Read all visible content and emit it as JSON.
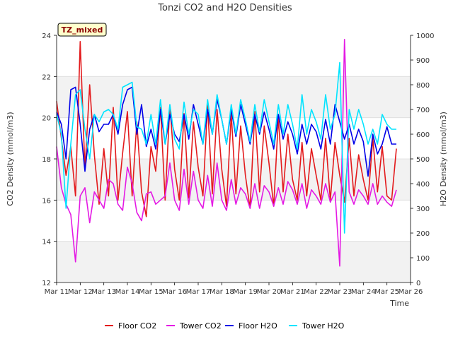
{
  "chart_data": {
    "type": "line",
    "title": "Tonzi CO2 and H2O Densities",
    "xlabel": "Time",
    "ylabel": "CO2 Density (mmol/m3)",
    "y2label": "H2O Density (mmol/m3)",
    "badge": "TZ_mixed",
    "xlim": [
      11,
      26
    ],
    "ylim": [
      12,
      24
    ],
    "y2lim": [
      0,
      1000
    ],
    "x_ticks": [
      {
        "value": 11,
        "label": "Mar 11"
      },
      {
        "value": 12,
        "label": "Mar 12"
      },
      {
        "value": 13,
        "label": "Mar 13"
      },
      {
        "value": 14,
        "label": "Mar 14"
      },
      {
        "value": 15,
        "label": "Mar 15"
      },
      {
        "value": 16,
        "label": "Mar 16"
      },
      {
        "value": 17,
        "label": "Mar 17"
      },
      {
        "value": 18,
        "label": "Mar 18"
      },
      {
        "value": 19,
        "label": "Mar 19"
      },
      {
        "value": 20,
        "label": "Mar 20"
      },
      {
        "value": 21,
        "label": "Mar 21"
      },
      {
        "value": 22,
        "label": "Mar 22"
      },
      {
        "value": 23,
        "label": "Mar 23"
      },
      {
        "value": 24,
        "label": "Mar 24"
      },
      {
        "value": 25,
        "label": "Mar 25"
      },
      {
        "value": 26,
        "label": "Mar 26"
      }
    ],
    "y_ticks": [
      "12",
      "14",
      "16",
      "18",
      "20",
      "22",
      "24"
    ],
    "y2_ticks": [
      "0",
      "100",
      "200",
      "300",
      "400",
      "500",
      "600",
      "700",
      "800",
      "900",
      "1000"
    ],
    "grid": "horizontal bands",
    "legend_position": "bottom",
    "series": [
      {
        "name": "Floor CO2",
        "axis": "left",
        "color": "#e31a1c",
        "x": [
          11.0,
          11.2,
          11.4,
          11.6,
          11.8,
          12.0,
          12.2,
          12.4,
          12.6,
          12.8,
          13.0,
          13.2,
          13.4,
          13.6,
          13.8,
          14.0,
          14.2,
          14.4,
          14.6,
          14.8,
          15.0,
          15.2,
          15.4,
          15.6,
          15.8,
          16.0,
          16.2,
          16.4,
          16.6,
          16.8,
          17.0,
          17.2,
          17.4,
          17.6,
          17.8,
          18.0,
          18.2,
          18.4,
          18.6,
          18.8,
          19.0,
          19.2,
          19.4,
          19.6,
          19.8,
          20.0,
          20.2,
          20.4,
          20.6,
          20.8,
          21.0,
          21.2,
          21.4,
          21.6,
          21.8,
          22.0,
          22.2,
          22.4,
          22.6,
          22.8,
          23.0,
          23.2,
          23.4,
          23.6,
          23.8,
          24.0,
          24.2,
          24.4,
          24.6,
          24.8,
          25.0,
          25.2,
          25.4
        ],
        "y": [
          20.8,
          19.0,
          17.2,
          18.6,
          16.2,
          23.7,
          17.5,
          21.6,
          18.2,
          15.8,
          18.5,
          16.2,
          20.5,
          16.0,
          18.3,
          20.3,
          16.2,
          19.8,
          16.4,
          15.2,
          18.6,
          17.4,
          20.5,
          16.0,
          20.6,
          17.5,
          16.0,
          20.2,
          16.1,
          19.8,
          17.6,
          16.2,
          20.6,
          16.3,
          20.4,
          17.5,
          15.7,
          20.2,
          16.3,
          19.6,
          17.2,
          15.6,
          20.3,
          16.4,
          19.6,
          17.8,
          15.7,
          20.0,
          16.4,
          19.2,
          17.0,
          16.0,
          18.8,
          16.2,
          18.5,
          17.2,
          16.0,
          19.0,
          16.0,
          18.8,
          17.2,
          15.9,
          19.0,
          16.2,
          18.2,
          17.0,
          16.0,
          19.0,
          16.4,
          18.6,
          16.2,
          16.0,
          18.5
        ]
      },
      {
        "name": "Tower CO2",
        "axis": "left",
        "color": "#e41ae4",
        "x": [
          11.0,
          11.2,
          11.4,
          11.6,
          11.8,
          12.0,
          12.2,
          12.4,
          12.6,
          12.8,
          13.0,
          13.2,
          13.4,
          13.6,
          13.8,
          14.0,
          14.2,
          14.4,
          14.6,
          14.8,
          15.0,
          15.2,
          15.4,
          15.6,
          15.8,
          16.0,
          16.2,
          16.4,
          16.6,
          16.8,
          17.0,
          17.2,
          17.4,
          17.6,
          17.8,
          18.0,
          18.2,
          18.4,
          18.6,
          18.8,
          19.0,
          19.2,
          19.4,
          19.6,
          19.8,
          20.0,
          20.2,
          20.4,
          20.6,
          20.8,
          21.0,
          21.2,
          21.4,
          21.6,
          21.8,
          22.0,
          22.2,
          22.4,
          22.6,
          22.8,
          23.0,
          23.2,
          23.4,
          23.6,
          23.8,
          24.0,
          24.2,
          24.4,
          24.6,
          24.8,
          25.0,
          25.2,
          25.4
        ],
        "y": [
          18.6,
          16.6,
          15.8,
          15.3,
          13.0,
          16.2,
          16.6,
          14.9,
          16.4,
          16.0,
          15.6,
          17.0,
          16.8,
          15.8,
          15.5,
          17.6,
          16.8,
          15.4,
          15.0,
          16.3,
          16.4,
          15.8,
          16.0,
          16.2,
          17.8,
          16.0,
          15.5,
          17.5,
          15.8,
          17.4,
          16.0,
          15.6,
          17.2,
          15.7,
          17.8,
          16.0,
          15.5,
          17.0,
          15.8,
          16.6,
          16.3,
          15.6,
          16.8,
          15.6,
          16.7,
          16.4,
          15.7,
          16.6,
          15.8,
          16.9,
          16.5,
          15.8,
          16.8,
          15.6,
          16.5,
          16.2,
          15.8,
          16.8,
          15.9,
          16.4,
          12.8,
          23.8,
          16.4,
          15.8,
          16.5,
          16.2,
          15.8,
          16.8,
          15.8,
          16.2,
          15.9,
          15.7,
          16.5
        ]
      },
      {
        "name": "Floor H2O",
        "axis": "right",
        "color": "#0000e8",
        "x": [
          11.0,
          11.2,
          11.4,
          11.6,
          11.8,
          12.0,
          12.2,
          12.4,
          12.6,
          12.8,
          13.0,
          13.2,
          13.4,
          13.6,
          13.8,
          14.0,
          14.2,
          14.4,
          14.6,
          14.8,
          15.0,
          15.2,
          15.4,
          15.6,
          15.8,
          16.0,
          16.2,
          16.4,
          16.6,
          16.8,
          17.0,
          17.2,
          17.4,
          17.6,
          17.8,
          18.0,
          18.2,
          18.4,
          18.6,
          18.8,
          19.0,
          19.2,
          19.4,
          19.6,
          19.8,
          20.0,
          20.2,
          20.4,
          20.6,
          20.8,
          21.0,
          21.2,
          21.4,
          21.6,
          21.8,
          22.0,
          22.2,
          22.4,
          22.6,
          22.8,
          23.0,
          23.2,
          23.4,
          23.6,
          23.8,
          24.0,
          24.2,
          24.4,
          24.6,
          24.8,
          25.0,
          25.2,
          25.4
        ],
        "y": [
          690,
          640,
          500,
          780,
          790,
          640,
          450,
          620,
          680,
          610,
          640,
          640,
          680,
          600,
          720,
          780,
          790,
          600,
          720,
          550,
          620,
          540,
          700,
          560,
          680,
          600,
          570,
          680,
          580,
          720,
          640,
          560,
          700,
          600,
          740,
          660,
          560,
          700,
          590,
          720,
          640,
          560,
          680,
          600,
          690,
          620,
          540,
          680,
          580,
          650,
          600,
          520,
          640,
          560,
          640,
          610,
          540,
          660,
          560,
          720,
          650,
          580,
          640,
          560,
          620,
          570,
          430,
          600,
          520,
          560,
          630,
          560,
          560
        ]
      },
      {
        "name": "Tower H2O",
        "axis": "right",
        "color": "#00e4ff",
        "x": [
          11.0,
          11.2,
          11.4,
          11.6,
          11.8,
          12.0,
          12.2,
          12.4,
          12.6,
          12.8,
          13.0,
          13.2,
          13.4,
          13.6,
          13.8,
          14.0,
          14.2,
          14.4,
          14.6,
          14.8,
          15.0,
          15.2,
          15.4,
          15.6,
          15.8,
          16.0,
          16.2,
          16.4,
          16.6,
          16.8,
          17.0,
          17.2,
          17.4,
          17.6,
          17.8,
          18.0,
          18.2,
          18.4,
          18.6,
          18.8,
          19.0,
          19.2,
          19.4,
          19.6,
          19.8,
          20.0,
          20.2,
          20.4,
          20.6,
          20.8,
          21.0,
          21.2,
          21.4,
          21.6,
          21.8,
          22.0,
          22.2,
          22.4,
          22.6,
          22.8,
          23.0,
          23.2,
          23.4,
          23.6,
          23.8,
          24.0,
          24.2,
          24.4,
          24.6,
          24.8,
          25.0,
          25.2,
          25.4
        ],
        "y": [
          680,
          600,
          300,
          560,
          760,
          780,
          620,
          500,
          680,
          650,
          690,
          700,
          680,
          620,
          790,
          800,
          810,
          630,
          620,
          560,
          680,
          560,
          740,
          560,
          720,
          580,
          540,
          730,
          600,
          700,
          680,
          560,
          740,
          600,
          760,
          660,
          560,
          720,
          600,
          740,
          660,
          570,
          720,
          610,
          740,
          650,
          560,
          720,
          600,
          720,
          640,
          540,
          760,
          600,
          700,
          650,
          580,
          760,
          620,
          680,
          890,
          200,
          700,
          620,
          700,
          640,
          560,
          620,
          560,
          680,
          640,
          620,
          620
        ]
      }
    ]
  }
}
